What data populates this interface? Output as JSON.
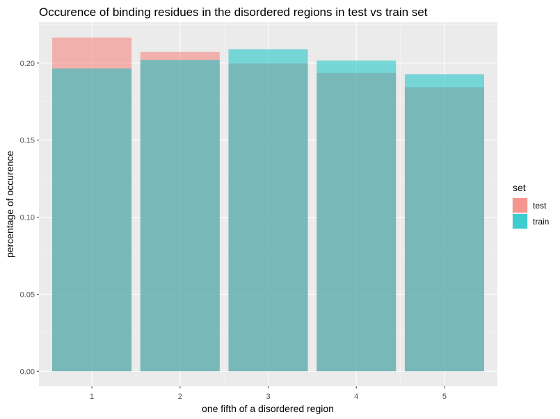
{
  "chart_data": {
    "type": "bar",
    "title": "Occurence of binding residues in the disordered regions in test vs train set",
    "xlabel": "one fifth of a disordered region",
    "ylabel": "percentage of occurence",
    "categories": [
      "1",
      "2",
      "3",
      "4",
      "5"
    ],
    "series": [
      {
        "name": "test",
        "values": [
          0.2165,
          0.2072,
          0.1998,
          0.1935,
          0.1843
        ],
        "color": "#F8766D"
      },
      {
        "name": "train",
        "values": [
          0.1965,
          0.202,
          0.2089,
          0.2016,
          0.1927
        ],
        "color": "#00BFC4"
      }
    ],
    "position": "identity",
    "bar_alpha": 0.5,
    "ylim": [
      -0.0098,
      0.2265
    ],
    "y_ticks": [
      "0.00",
      "0.05",
      "0.10",
      "0.15",
      "0.20"
    ],
    "y_tick_values": [
      0.0,
      0.05,
      0.1,
      0.15,
      0.2
    ],
    "grid": true,
    "panel_background": "#EBEBEB",
    "legend": {
      "title": "set",
      "placement": "right"
    }
  }
}
